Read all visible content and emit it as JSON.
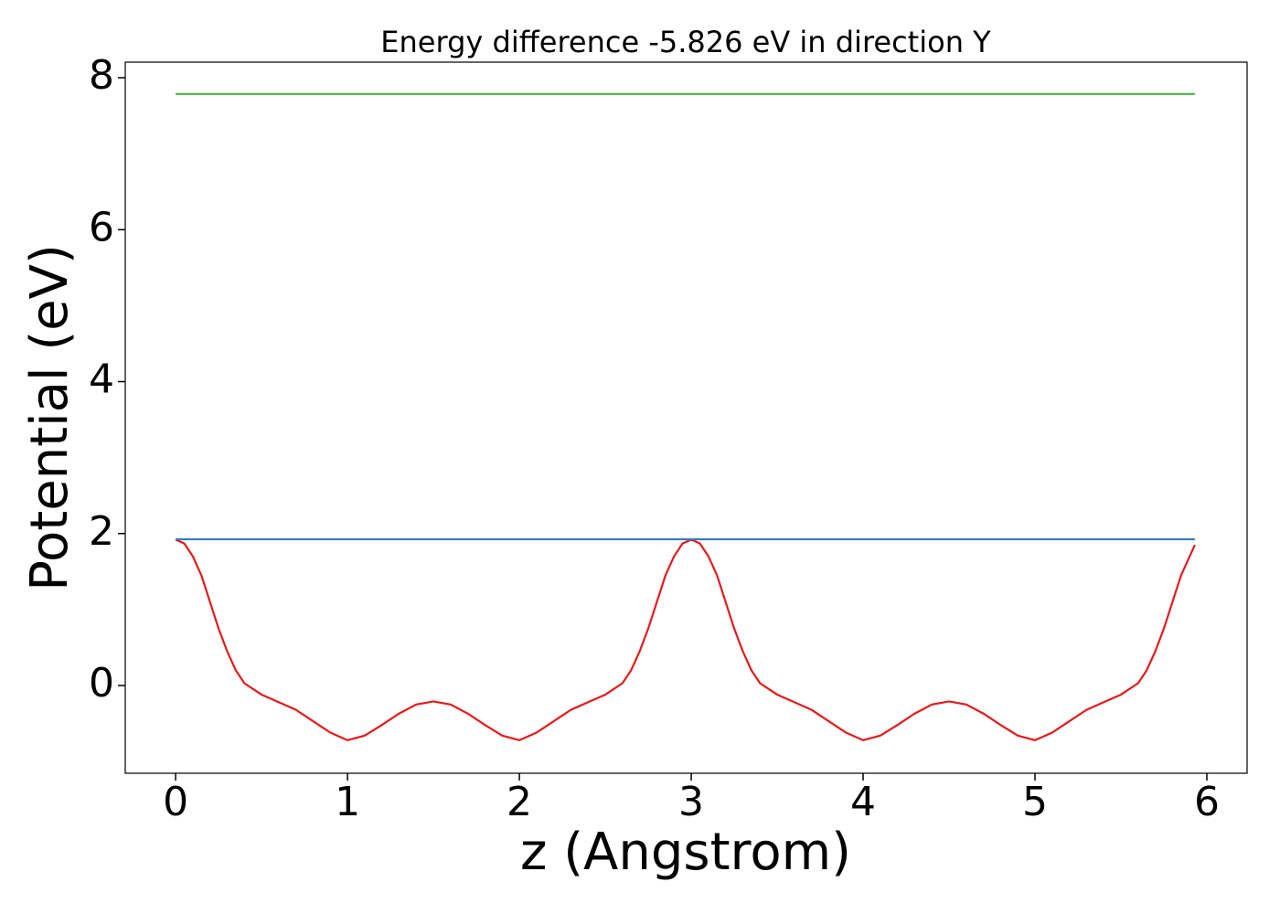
{
  "chart_data": {
    "type": "line",
    "title": "Energy difference -5.826 eV in direction Y",
    "xlabel": "z (Angstrom)",
    "ylabel": "Potential (eV)",
    "xlim": [
      -0.293,
      6.234
    ],
    "ylim": [
      -1.155,
      8.205
    ],
    "xticks": [
      0,
      1,
      2,
      3,
      4,
      5,
      6
    ],
    "yticks": [
      0,
      2,
      4,
      6,
      8
    ],
    "series": [
      {
        "color": "#e41a1c",
        "x": [
          0,
          0.05,
          0.1,
          0.15,
          0.2,
          0.25,
          0.3,
          0.35,
          0.4,
          0.5,
          0.6,
          0.7,
          0.8,
          0.9,
          1.0,
          1.1,
          1.2,
          1.3,
          1.4,
          1.5,
          1.6,
          1.7,
          1.8,
          1.9,
          2.0,
          2.1,
          2.2,
          2.3,
          2.4,
          2.5,
          2.6,
          2.65,
          2.7,
          2.75,
          2.8,
          2.85,
          2.9,
          2.95,
          3.0,
          3.05,
          3.1,
          3.15,
          3.2,
          3.25,
          3.3,
          3.35,
          3.4,
          3.5,
          3.6,
          3.7,
          3.8,
          3.9,
          4.0,
          4.1,
          4.2,
          4.3,
          4.4,
          4.5,
          4.6,
          4.7,
          4.8,
          4.9,
          5.0,
          5.1,
          5.2,
          5.3,
          5.4,
          5.5,
          5.6,
          5.65,
          5.7,
          5.75,
          5.8,
          5.85,
          5.9,
          5.93
        ],
        "values": [
          1.92,
          1.87,
          1.7,
          1.45,
          1.1,
          0.75,
          0.45,
          0.2,
          0.03,
          -0.12,
          -0.22,
          -0.32,
          -0.47,
          -0.62,
          -0.72,
          -0.66,
          -0.52,
          -0.37,
          -0.25,
          -0.21,
          -0.25,
          -0.37,
          -0.52,
          -0.66,
          -0.72,
          -0.62,
          -0.47,
          -0.32,
          -0.22,
          -0.12,
          0.03,
          0.2,
          0.45,
          0.75,
          1.1,
          1.45,
          1.7,
          1.87,
          1.92,
          1.87,
          1.7,
          1.45,
          1.1,
          0.75,
          0.45,
          0.2,
          0.03,
          -0.12,
          -0.22,
          -0.32,
          -0.47,
          -0.62,
          -0.72,
          -0.66,
          -0.52,
          -0.37,
          -0.25,
          -0.21,
          -0.25,
          -0.37,
          -0.52,
          -0.66,
          -0.72,
          -0.62,
          -0.47,
          -0.32,
          -0.22,
          -0.12,
          0.03,
          0.2,
          0.45,
          0.75,
          1.1,
          1.45,
          1.7,
          1.85
        ]
      },
      {
        "color": "#377eb8",
        "x": [
          0,
          5.93
        ],
        "values": [
          1.925,
          1.925
        ]
      },
      {
        "color": "#4daf4a",
        "x": [
          0,
          5.93
        ],
        "values": [
          7.786,
          7.786
        ]
      }
    ]
  }
}
